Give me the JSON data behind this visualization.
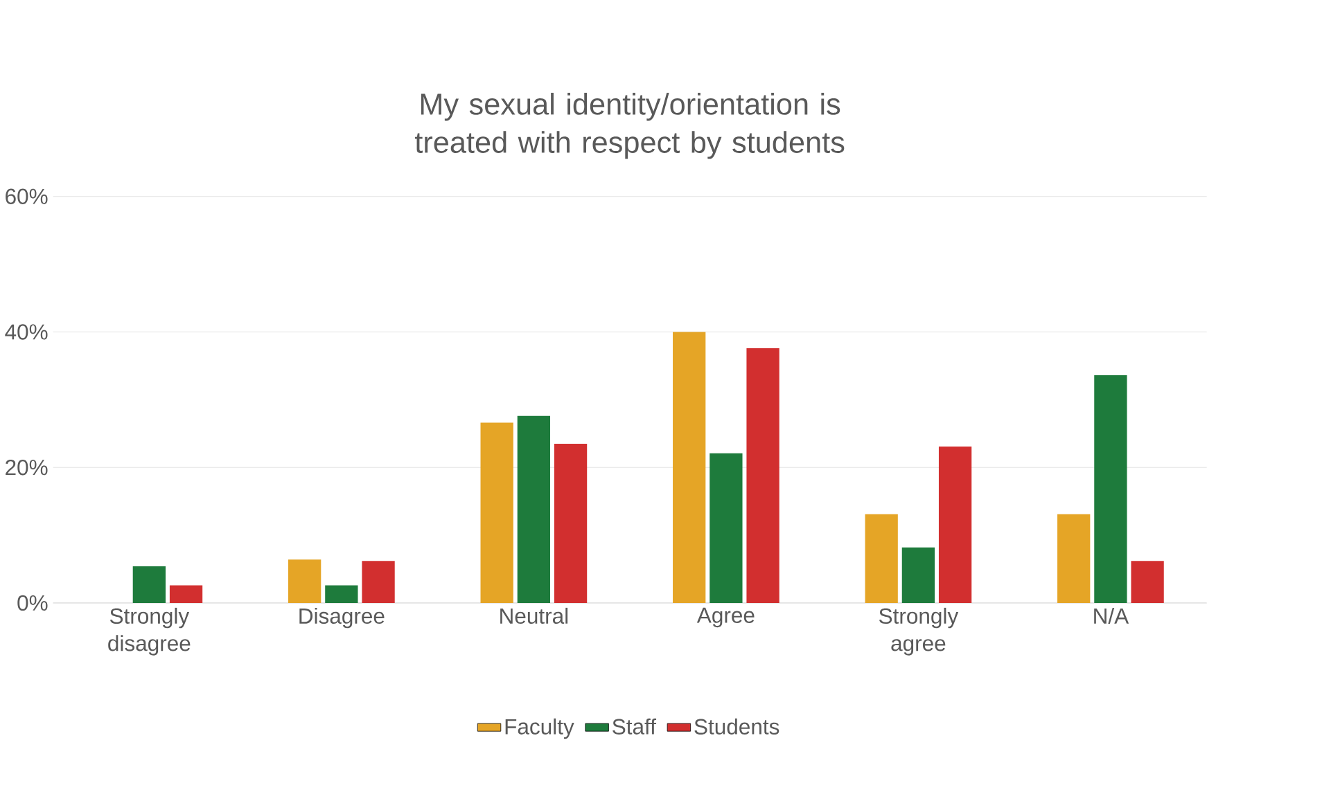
{
  "chart_data": {
    "type": "bar",
    "title": "My sexual identity/orientation is treated with respect by students",
    "categories": [
      "Strongly disagree",
      "Disagree",
      "Neutral",
      "Agree",
      "Strongly agree",
      "N/A"
    ],
    "series": [
      {
        "name": "Faculty",
        "color": "#e5a526",
        "values": [
          0,
          6.4,
          26.6,
          40,
          13.1,
          13.1
        ]
      },
      {
        "name": "Staff",
        "color": "#1e7b3c",
        "values": [
          5.4,
          2.6,
          27.6,
          22.1,
          8.2,
          33.6
        ]
      },
      {
        "name": "Students",
        "color": "#d22f2f",
        "values": [
          2.6,
          6.2,
          23.5,
          37.6,
          23.1,
          6.2
        ]
      }
    ],
    "ylim": [
      0,
      60
    ],
    "yticks": [
      {
        "value": 0,
        "label": "0%"
      },
      {
        "value": 20,
        "label": "20%"
      },
      {
        "value": 40,
        "label": "40%"
      },
      {
        "value": 60,
        "label": "60%"
      }
    ],
    "grid": "y",
    "legend": "bottom"
  }
}
